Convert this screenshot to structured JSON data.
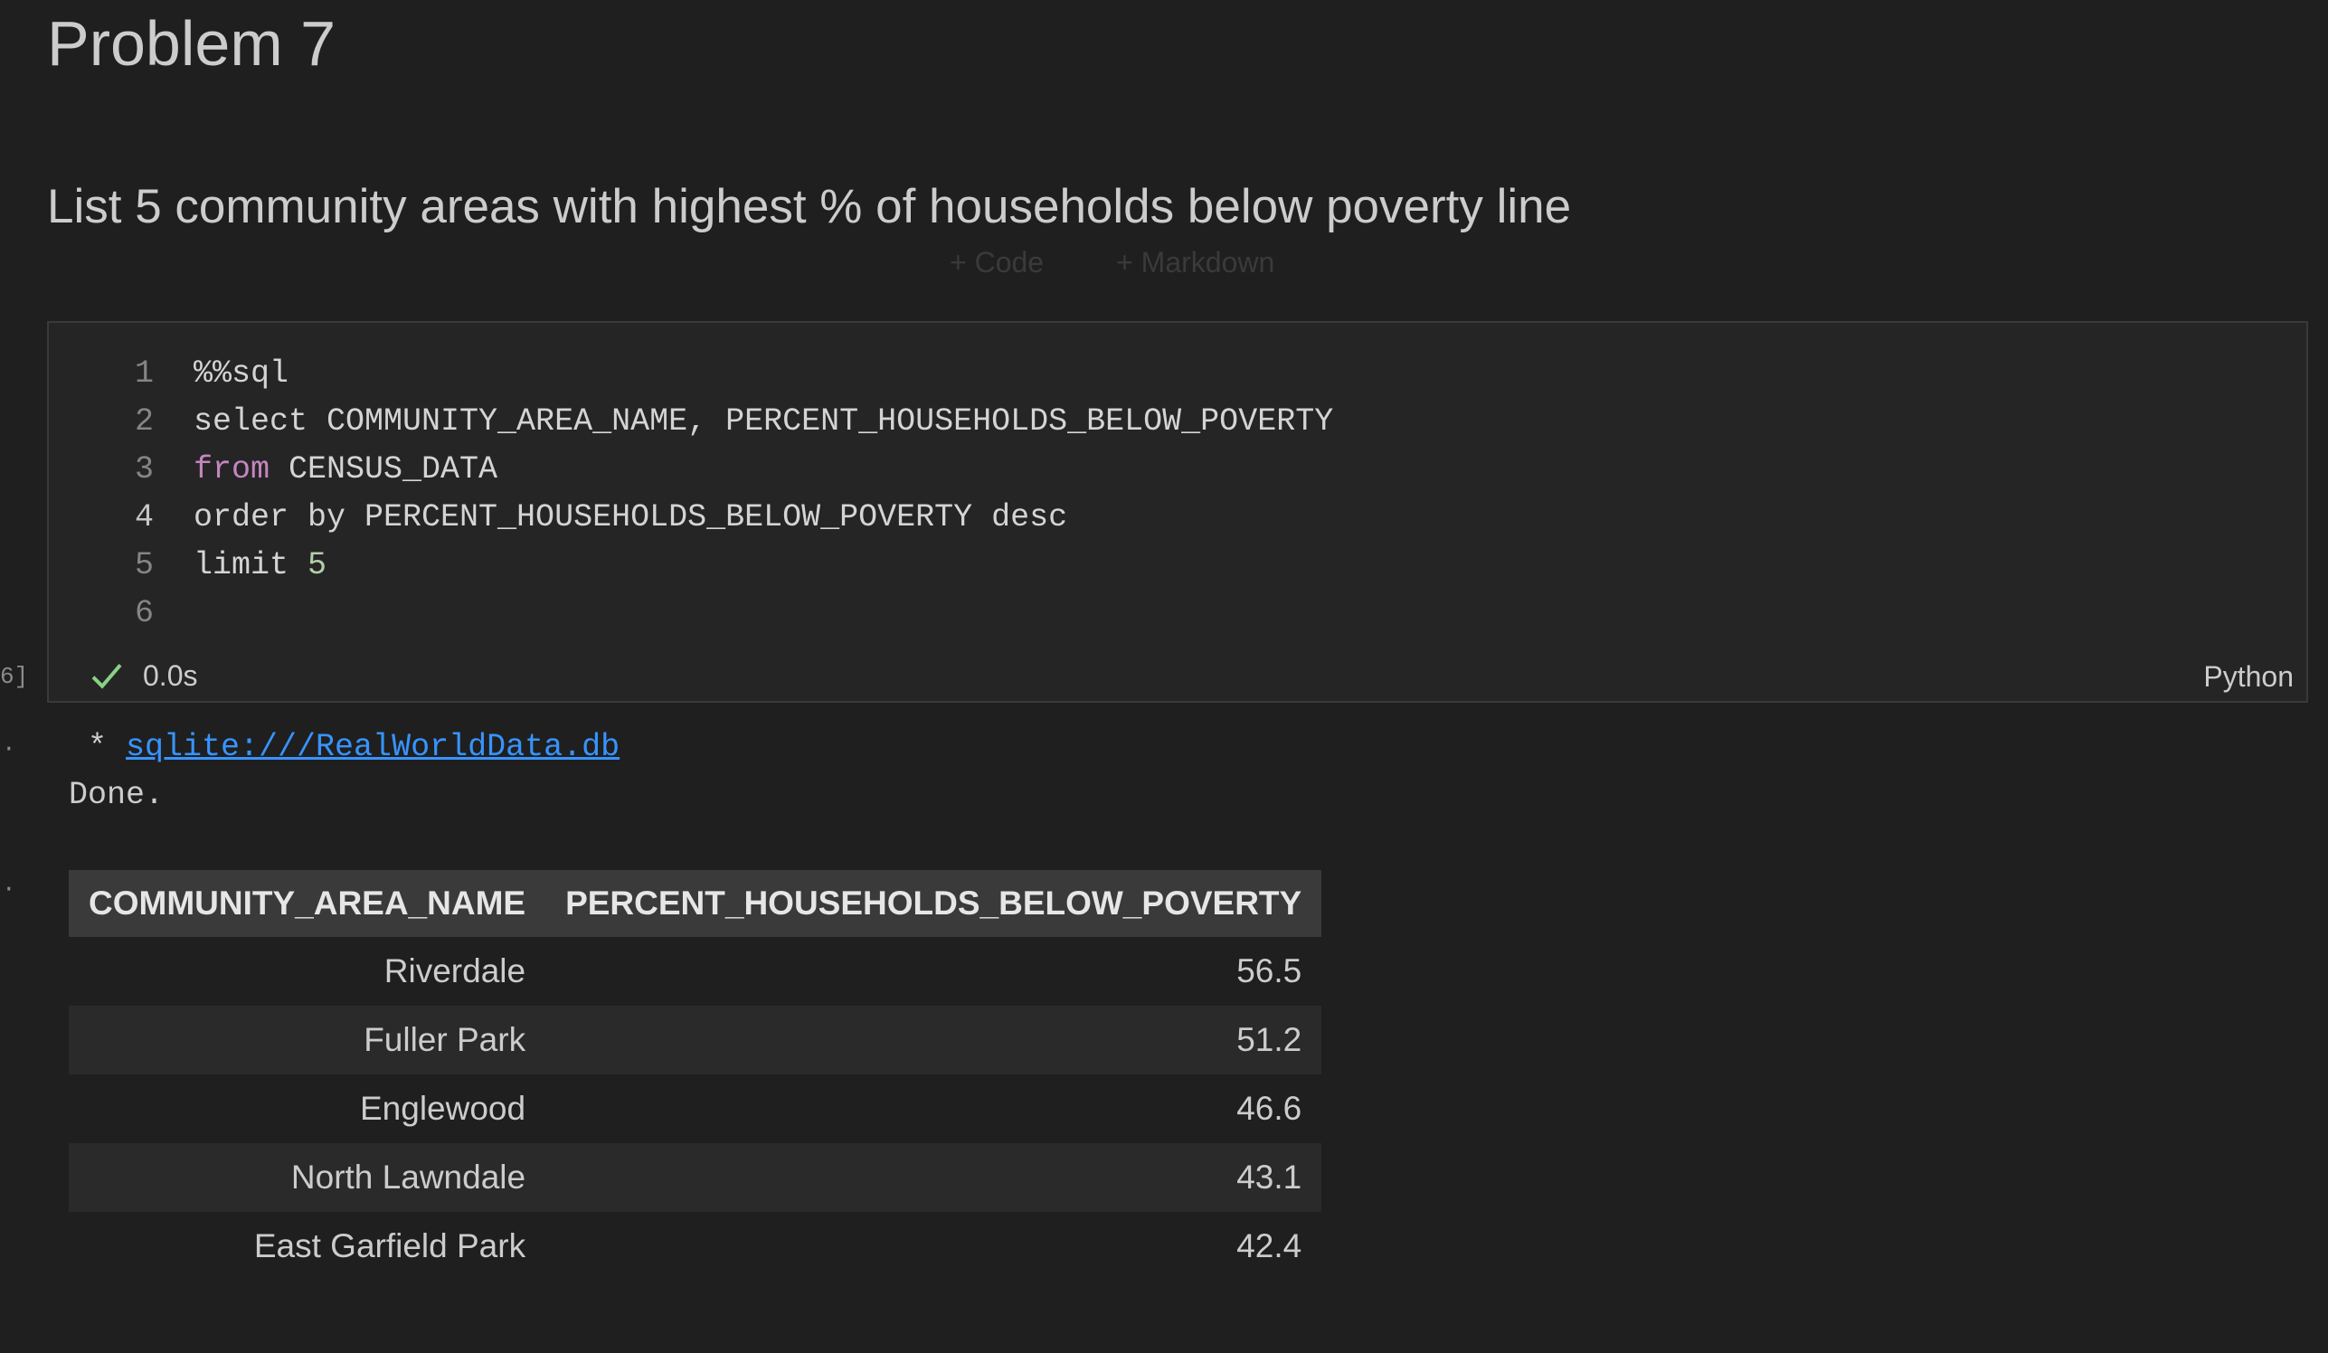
{
  "markdown": {
    "heading": "Problem 7",
    "paragraph": "List 5 community areas with highest % of households below poverty line"
  },
  "add_cell": {
    "code_label": "+ Code",
    "markdown_label": "+ Markdown"
  },
  "code_cell": {
    "execution_count": "6]",
    "lines": [
      {
        "n": "1",
        "text": "%%sql"
      },
      {
        "n": "2",
        "text": "select COMMUNITY_AREA_NAME, PERCENT_HOUSEHOLDS_BELOW_POVERTY"
      },
      {
        "n": "3",
        "kw": "from",
        "rest": " CENSUS_DATA"
      },
      {
        "n": "4",
        "text": "order by PERCENT_HOUSEHOLDS_BELOW_POVERTY desc"
      },
      {
        "n": "5",
        "pre": "limit ",
        "num": "5"
      },
      {
        "n": "6",
        "text": ""
      }
    ],
    "duration": "0.0s",
    "language": "Python",
    "status_icon": "check-icon"
  },
  "output": {
    "dots": [
      "·",
      "·"
    ],
    "connection_prefix": " * ",
    "connection_link": "sqlite:///RealWorldData.db",
    "done": "Done.",
    "table": {
      "columns": [
        "COMMUNITY_AREA_NAME",
        "PERCENT_HOUSEHOLDS_BELOW_POVERTY"
      ],
      "rows": [
        [
          "Riverdale",
          "56.5"
        ],
        [
          "Fuller Park",
          "51.2"
        ],
        [
          "Englewood",
          "46.6"
        ],
        [
          "North Lawndale",
          "43.1"
        ],
        [
          "East Garfield Park",
          "42.4"
        ]
      ]
    }
  },
  "colors": {
    "background": "#1f1f1f",
    "cell_background": "#252526",
    "keyword": "#c586c0",
    "number": "#b5cea8",
    "link": "#3794ff",
    "success": "#89d185"
  }
}
